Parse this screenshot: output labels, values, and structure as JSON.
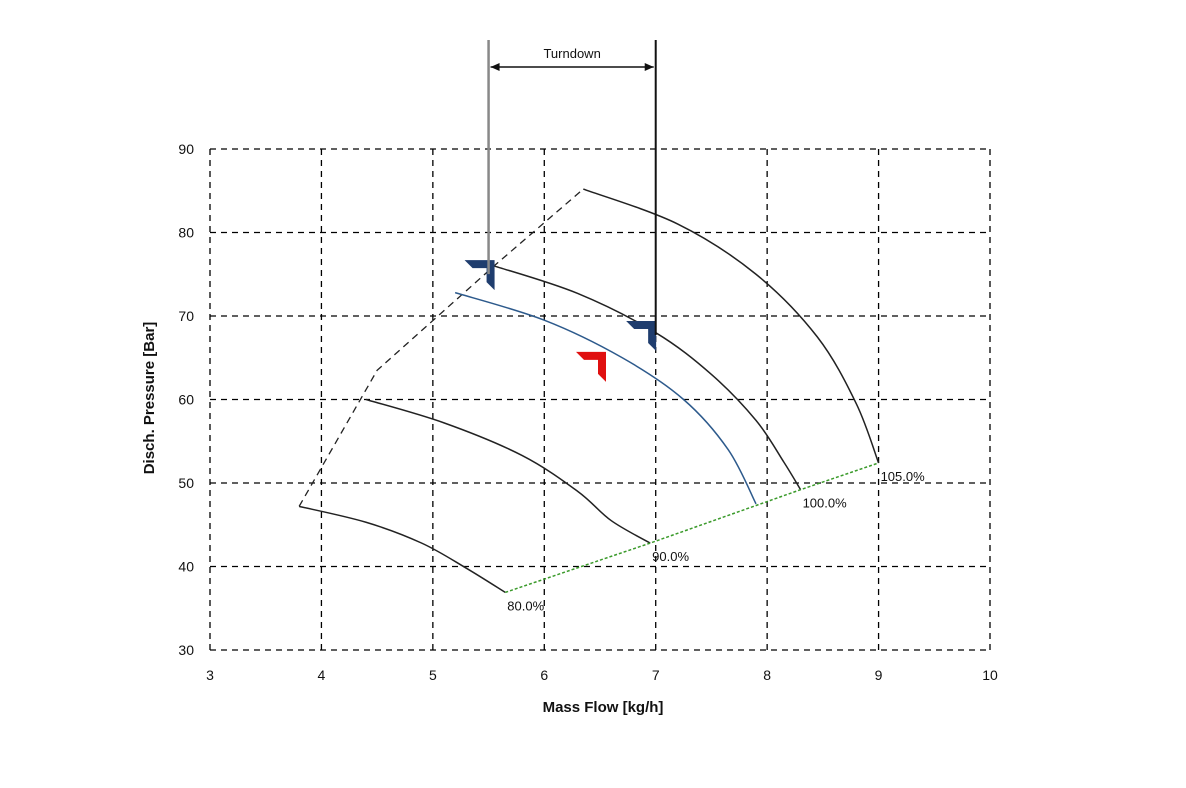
{
  "chart_data": {
    "type": "line",
    "title": "",
    "xlabel": "Mass Flow  [kg/h]",
    "ylabel": "Disch. Pressure [Bar]",
    "xlim": [
      3,
      10
    ],
    "ylim": [
      30,
      90
    ],
    "xticks": [
      "3",
      "4",
      "5",
      "6",
      "7",
      "8",
      "9",
      "10"
    ],
    "yticks": [
      "30",
      "40",
      "50",
      "60",
      "70",
      "80",
      "90"
    ],
    "grid": true,
    "colors": {
      "speed_line": "#222222",
      "operating_line": "#2d5a8c",
      "surge_line": "#222222",
      "stonewall_line": "#3a9a2a",
      "marker_blue": "#1f3d6e",
      "marker_red": "#e01010"
    },
    "series": [
      {
        "label": "80.0%",
        "points": [
          [
            3.8,
            47.2
          ],
          [
            4.4,
            45.3
          ],
          [
            4.9,
            42.8
          ],
          [
            5.3,
            39.8
          ],
          [
            5.65,
            36.9
          ]
        ]
      },
      {
        "label": "90.0%",
        "points": [
          [
            4.4,
            60.0
          ],
          [
            5.1,
            57.2
          ],
          [
            5.8,
            53.3
          ],
          [
            6.3,
            49.0
          ],
          [
            6.6,
            45.5
          ],
          [
            6.95,
            42.8
          ]
        ]
      },
      {
        "label": "100.0%",
        "points": [
          [
            5.55,
            76.0
          ],
          [
            6.3,
            72.7
          ],
          [
            7.0,
            68.0
          ],
          [
            7.5,
            63.0
          ],
          [
            7.9,
            57.5
          ],
          [
            8.15,
            52.5
          ],
          [
            8.3,
            49.2
          ]
        ]
      },
      {
        "label": "105.0%",
        "points": [
          [
            6.35,
            85.2
          ],
          [
            7.2,
            81.0
          ],
          [
            7.9,
            75.0
          ],
          [
            8.45,
            67.5
          ],
          [
            8.8,
            59.5
          ],
          [
            9.0,
            52.4
          ]
        ]
      },
      {
        "label": "",
        "role": "operating",
        "points": [
          [
            5.2,
            72.8
          ],
          [
            6.0,
            69.5
          ],
          [
            6.7,
            65.0
          ],
          [
            7.25,
            60.0
          ],
          [
            7.65,
            54.0
          ],
          [
            7.9,
            47.5
          ]
        ]
      }
    ],
    "surge_line": [
      [
        3.8,
        47.2
      ],
      [
        4.5,
        63.5
      ],
      [
        5.55,
        76.0
      ],
      [
        6.35,
        85.2
      ]
    ],
    "stonewall_line": [
      [
        5.65,
        36.9
      ],
      [
        6.95,
        42.8
      ],
      [
        8.3,
        49.2
      ],
      [
        9.0,
        52.4
      ]
    ],
    "markers": [
      {
        "x": 5.5,
        "y": 75.5,
        "color": "marker_blue"
      },
      {
        "x": 6.95,
        "y": 68.2,
        "color": "marker_blue"
      },
      {
        "x": 6.5,
        "y": 64.5,
        "color": "marker_red"
      }
    ],
    "turndown": {
      "label": "Turndown",
      "x_start": 5.5,
      "x_end": 7.0
    }
  }
}
